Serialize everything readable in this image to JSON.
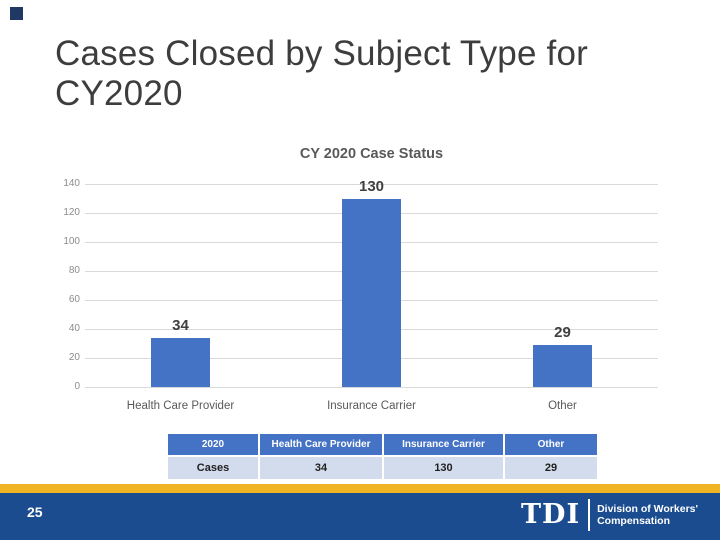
{
  "slide": {
    "title_line1": "Cases Closed by Subject Type for",
    "title_line2": "CY2020"
  },
  "chart_data": {
    "type": "bar",
    "title": "CY 2020 Case Status",
    "categories": [
      "Health Care Provider",
      "Insurance Carrier",
      "Other"
    ],
    "values": [
      34,
      130,
      29
    ],
    "yticks": [
      0,
      20,
      40,
      60,
      80,
      100,
      120,
      140
    ],
    "ylim": [
      0,
      140
    ],
    "xlabel": "",
    "ylabel": "",
    "grid": true,
    "legend": false,
    "bar_color": "#4472C4",
    "data_label_color": "#404040",
    "axis_tick_color": "#8C8C8C",
    "category_label_color": "#595959",
    "gridline_color": "#D9D9D9",
    "title_color": "#595959"
  },
  "table": {
    "headers": [
      "2020",
      "Health Care Provider",
      "Insurance Carrier",
      "Other"
    ],
    "rows": [
      [
        "Cases",
        "34",
        "130",
        "29"
      ]
    ],
    "header_bg": "#4472C4",
    "header_text_color": "#FFFFFF",
    "row_bg": "#D3DCEC",
    "row_text_color": "#1F1F1F"
  },
  "footer": {
    "page_number": "25",
    "logo_acronym": "TDI",
    "division_line1": "Division of Workers'",
    "division_line2": "Compensation",
    "stripe_color": "#F0B323",
    "band_color": "#1B4C8F"
  },
  "decor": {
    "corner_square_color": "#1F3864"
  }
}
